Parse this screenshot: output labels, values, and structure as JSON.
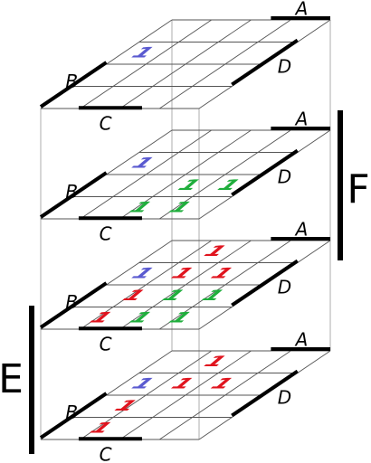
{
  "layers": [
    {
      "labels": {
        "a": "A",
        "b": "B",
        "c": "C",
        "d": "D"
      },
      "ones": [
        {
          "text": "1",
          "color": "#5a5ad0"
        }
      ]
    },
    {
      "labels": {
        "a": "A",
        "b": "B",
        "c": "C",
        "d": "D"
      },
      "ones": [
        {
          "text": "1",
          "color": "#5a5ad0"
        },
        {
          "text": "1",
          "color": "#1fae3c"
        },
        {
          "text": "1",
          "color": "#1fae3c"
        },
        {
          "text": "1",
          "color": "#1fae3c"
        },
        {
          "text": "1",
          "color": "#1fae3c"
        }
      ]
    },
    {
      "labels": {
        "a": "A",
        "b": "B",
        "c": "C",
        "d": "D"
      },
      "ones": [
        {
          "text": "1",
          "color": "#e0141e"
        },
        {
          "text": "1",
          "color": "#5a5ad0"
        },
        {
          "text": "1",
          "color": "#e0141e"
        },
        {
          "text": "1",
          "color": "#e0141e"
        },
        {
          "text": "1",
          "color": "#e0141e"
        },
        {
          "text": "1",
          "color": "#1fae3c"
        },
        {
          "text": "1",
          "color": "#1fae3c"
        },
        {
          "text": "1",
          "color": "#e0141e"
        },
        {
          "text": "1",
          "color": "#1fae3c"
        },
        {
          "text": "1",
          "color": "#1fae3c"
        }
      ]
    },
    {
      "labels": {
        "a": "A",
        "b": "B",
        "c": "C",
        "d": "D"
      },
      "ones": [
        {
          "text": "1",
          "color": "#e0141e"
        },
        {
          "text": "1",
          "color": "#5a5ad0"
        },
        {
          "text": "1",
          "color": "#e0141e"
        },
        {
          "text": "1",
          "color": "#e0141e"
        },
        {
          "text": "1",
          "color": "#e0141e"
        },
        {
          "text": "1",
          "color": "#e0141e"
        }
      ]
    }
  ],
  "e_label": "E",
  "f_label": "F"
}
